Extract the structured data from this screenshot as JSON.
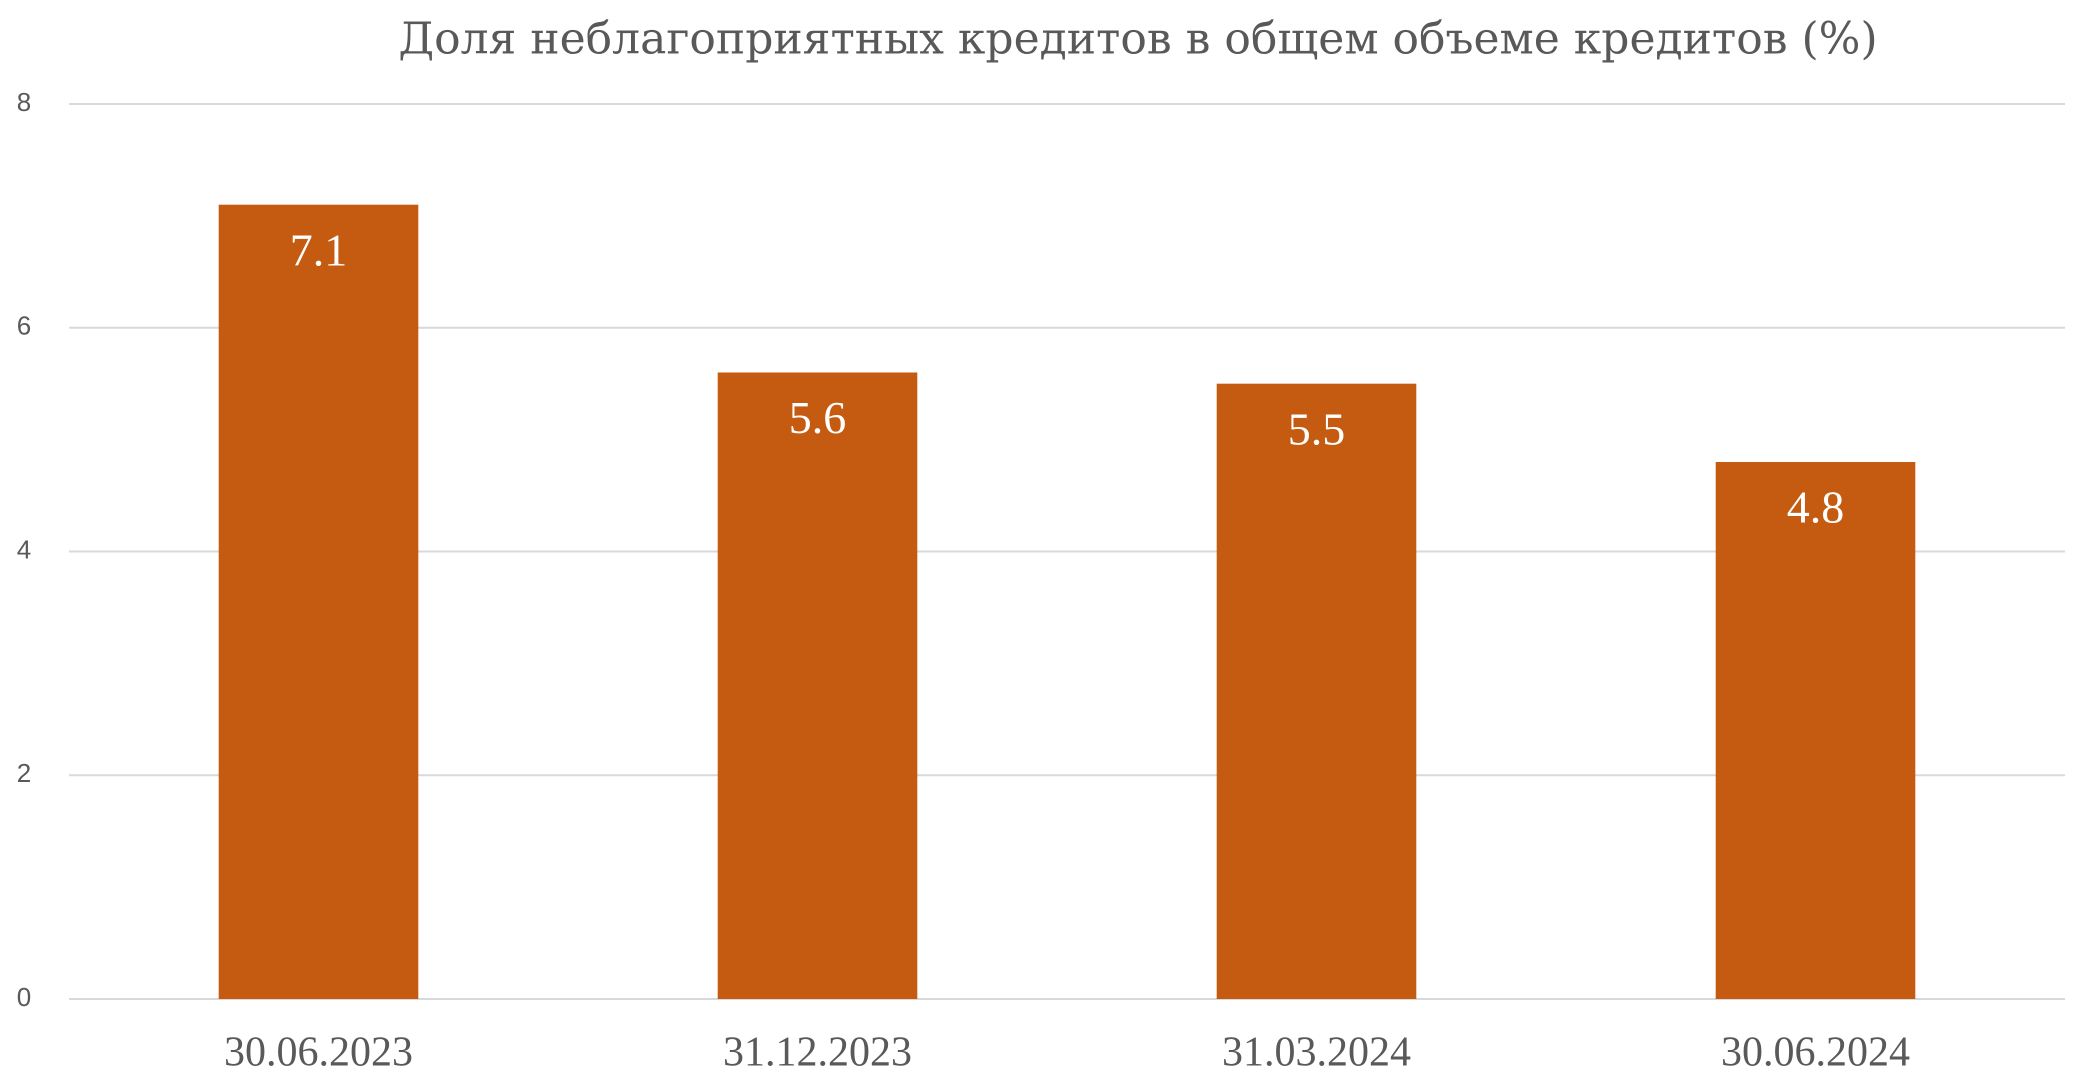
{
  "chart_data": {
    "type": "bar",
    "title": "Доля неблагоприятных кредитов в общем объеме кредитов (%)",
    "categories": [
      "30.06.2023",
      "31.12.2023",
      "31.03.2024",
      "30.06.2024"
    ],
    "values": [
      7.1,
      5.6,
      5.5,
      4.8
    ],
    "color": "#c55a11",
    "ylim": [
      0,
      8
    ],
    "yticks": [
      0,
      2,
      4,
      6,
      8
    ],
    "grid": true
  }
}
